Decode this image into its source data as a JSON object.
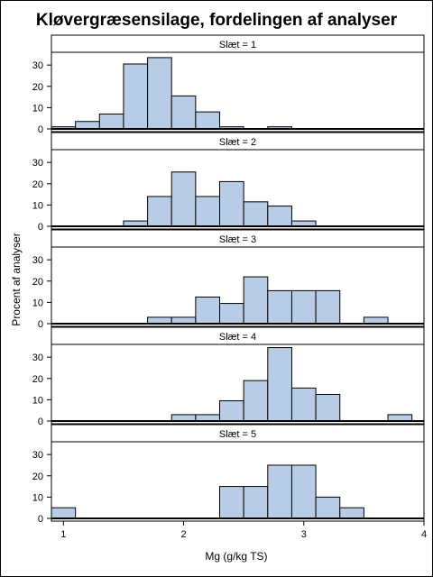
{
  "chart_data": {
    "type": "bar",
    "title": "Kløvergræsensilage, fordelingen af analyser",
    "xlabel": "Mg (g/kg TS)",
    "ylabel": "Procent af analyser",
    "xlim": [
      0.9,
      4.0
    ],
    "xticks": [
      1,
      2,
      3,
      4
    ],
    "bin_width": 0.2,
    "panels": [
      {
        "label": "Slæt = 1",
        "ylim": [
          0,
          36
        ],
        "yticks": [
          0,
          10,
          20,
          30
        ],
        "bins": [
          {
            "x": 1.0,
            "value": 1
          },
          {
            "x": 1.2,
            "value": 3.5
          },
          {
            "x": 1.4,
            "value": 7
          },
          {
            "x": 1.6,
            "value": 30.5
          },
          {
            "x": 1.8,
            "value": 33.5
          },
          {
            "x": 2.0,
            "value": 15.5
          },
          {
            "x": 2.2,
            "value": 8
          },
          {
            "x": 2.4,
            "value": 1
          },
          {
            "x": 2.6,
            "value": 0
          },
          {
            "x": 2.8,
            "value": 1
          }
        ]
      },
      {
        "label": "Slæt = 2",
        "ylim": [
          0,
          36
        ],
        "yticks": [
          0,
          10,
          20,
          30
        ],
        "bins": [
          {
            "x": 1.6,
            "value": 2.5
          },
          {
            "x": 1.8,
            "value": 14
          },
          {
            "x": 2.0,
            "value": 25.5
          },
          {
            "x": 2.2,
            "value": 14
          },
          {
            "x": 2.4,
            "value": 21
          },
          {
            "x": 2.6,
            "value": 11.5
          },
          {
            "x": 2.8,
            "value": 9.5
          },
          {
            "x": 3.0,
            "value": 2.5
          }
        ]
      },
      {
        "label": "Slæt = 3",
        "ylim": [
          0,
          36
        ],
        "yticks": [
          0,
          10,
          20,
          30
        ],
        "bins": [
          {
            "x": 1.8,
            "value": 3
          },
          {
            "x": 2.0,
            "value": 3
          },
          {
            "x": 2.2,
            "value": 12.5
          },
          {
            "x": 2.4,
            "value": 9.5
          },
          {
            "x": 2.6,
            "value": 22
          },
          {
            "x": 2.8,
            "value": 15.5
          },
          {
            "x": 3.0,
            "value": 15.5
          },
          {
            "x": 3.2,
            "value": 15.5
          },
          {
            "x": 3.4,
            "value": 0
          },
          {
            "x": 3.6,
            "value": 3
          }
        ]
      },
      {
        "label": "Slæt = 4",
        "ylim": [
          0,
          36
        ],
        "yticks": [
          0,
          10,
          20,
          30
        ],
        "bins": [
          {
            "x": 2.0,
            "value": 3
          },
          {
            "x": 2.2,
            "value": 3
          },
          {
            "x": 2.4,
            "value": 9.5
          },
          {
            "x": 2.6,
            "value": 19
          },
          {
            "x": 2.8,
            "value": 34.5
          },
          {
            "x": 3.0,
            "value": 15.5
          },
          {
            "x": 3.2,
            "value": 12.5
          },
          {
            "x": 3.4,
            "value": 0
          },
          {
            "x": 3.6,
            "value": 0
          },
          {
            "x": 3.8,
            "value": 3
          }
        ]
      },
      {
        "label": "Slæt = 5",
        "ylim": [
          0,
          36
        ],
        "yticks": [
          0,
          10,
          20,
          30
        ],
        "bins": [
          {
            "x": 1.0,
            "value": 5
          },
          {
            "x": 2.4,
            "value": 15
          },
          {
            "x": 2.6,
            "value": 15
          },
          {
            "x": 2.8,
            "value": 25
          },
          {
            "x": 3.0,
            "value": 25
          },
          {
            "x": 3.2,
            "value": 10
          },
          {
            "x": 3.4,
            "value": 5
          }
        ]
      }
    ]
  }
}
